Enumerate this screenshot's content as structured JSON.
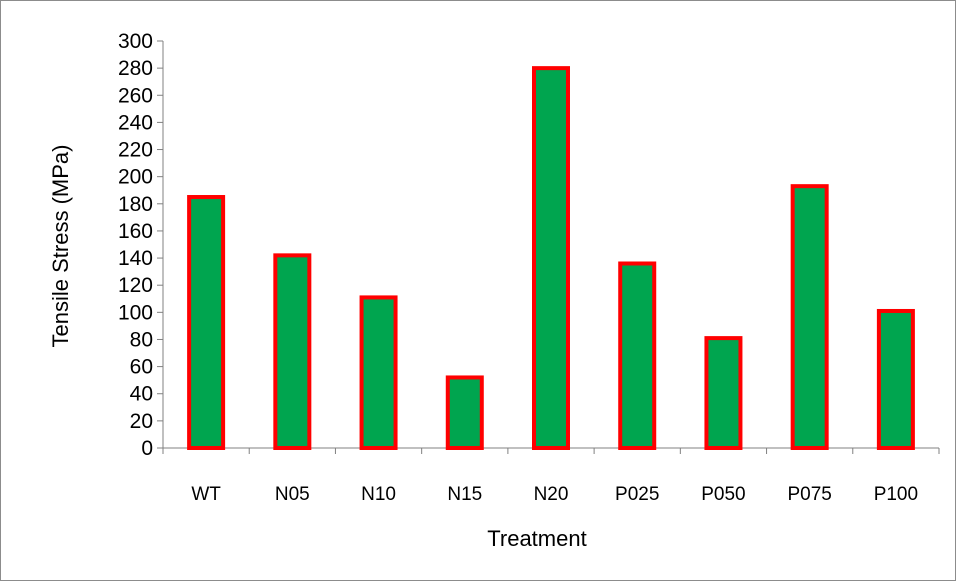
{
  "chart_data": {
    "type": "bar",
    "title": "",
    "xlabel": "Treatment",
    "ylabel": "Tensile Stress (MPa)",
    "categories": [
      "WT",
      "N05",
      "N10",
      "N15",
      "N20",
      "P025",
      "P050",
      "P075",
      "P100"
    ],
    "values": [
      185,
      142,
      111,
      52,
      280,
      136,
      81,
      193,
      101
    ],
    "ylim": [
      0,
      300
    ],
    "yticks": [
      0,
      20,
      40,
      60,
      80,
      100,
      120,
      140,
      160,
      180,
      200,
      220,
      240,
      260,
      280,
      300
    ],
    "grid": false,
    "legend": "none",
    "colors": {
      "bar_fill": "#00a54f",
      "bar_border": "#ff0000",
      "axis": "#808080"
    }
  }
}
